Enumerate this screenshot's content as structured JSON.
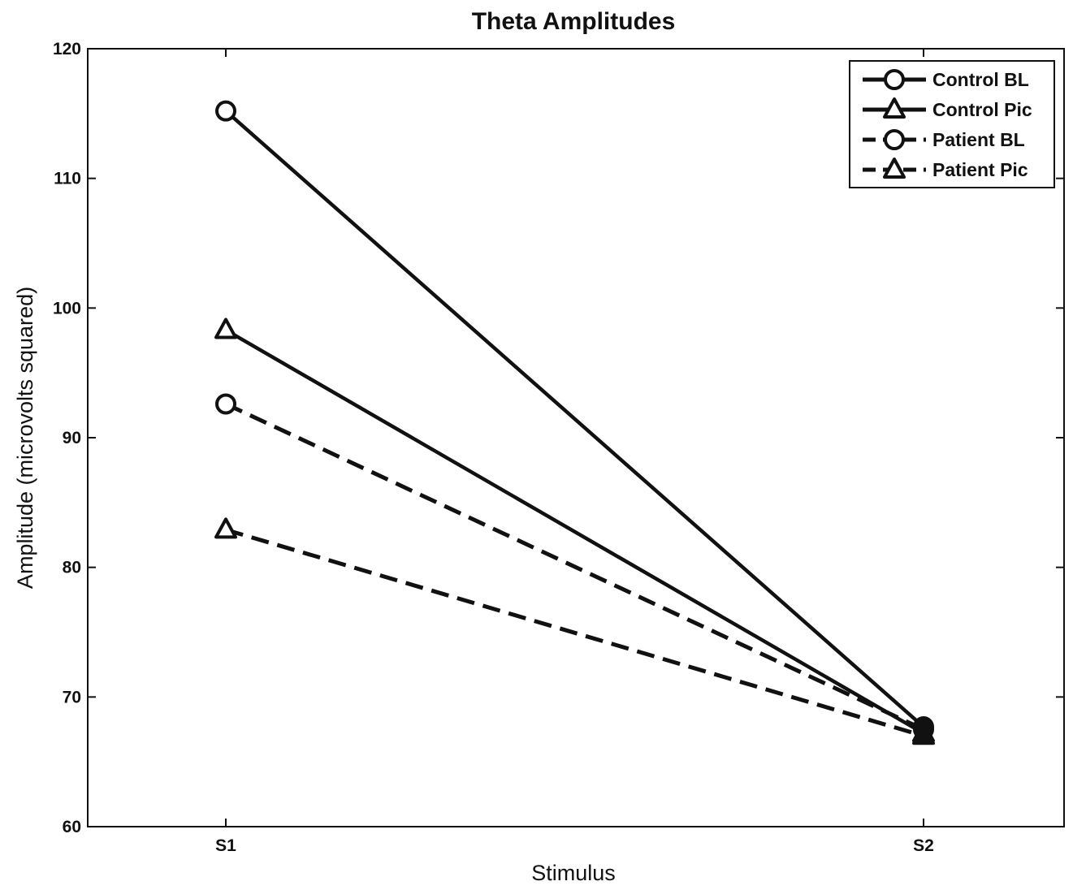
{
  "chart_data": {
    "type": "line",
    "title": "Theta Amplitudes",
    "xlabel": "Stimulus",
    "ylabel": "Amplitude (microvolts squared)",
    "categories": [
      "S1",
      "S2"
    ],
    "ylim": [
      60,
      120
    ],
    "yticks": [
      60,
      70,
      80,
      90,
      100,
      110,
      120
    ],
    "grid": false,
    "legend_position": "top-right",
    "series": [
      {
        "name": "Control BL",
        "values": [
          115.2,
          67.7
        ],
        "marker": "circle",
        "line": "solid"
      },
      {
        "name": "Control Pic",
        "values": [
          98.3,
          67.2
        ],
        "marker": "triangle",
        "line": "solid"
      },
      {
        "name": "Patient BL",
        "values": [
          92.6,
          67.5
        ],
        "marker": "circle",
        "line": "dashed"
      },
      {
        "name": "Patient Pic",
        "values": [
          82.9,
          67.0
        ],
        "marker": "triangle",
        "line": "dashed"
      }
    ],
    "colors": {
      "line": "#111111",
      "background": "#ffffff"
    }
  }
}
